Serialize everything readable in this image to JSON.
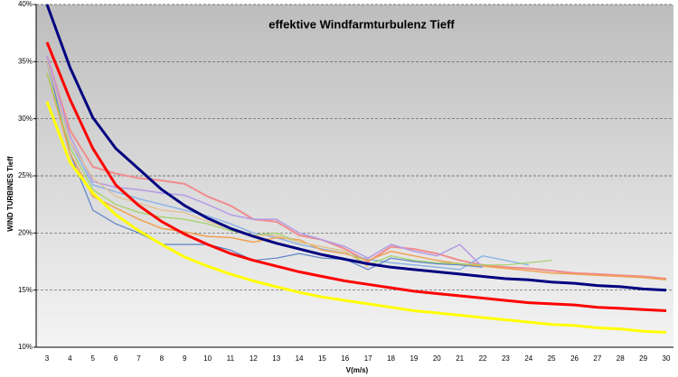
{
  "chart_data": {
    "type": "line",
    "title": "effektive Windfarmturbulenz Tieff",
    "x_label": "V(m/s)",
    "y_label": "WIND TURBINES Tieff",
    "categories": [
      "3",
      "4",
      "5",
      "6",
      "7",
      "8",
      "9",
      "10",
      "11",
      "12",
      "13",
      "14",
      "15",
      "16",
      "17",
      "18",
      "19",
      "20",
      "21",
      "22",
      "23",
      "24",
      "25",
      "26",
      "27",
      "28",
      "29",
      "30"
    ],
    "ylim": [
      10,
      40
    ],
    "yticks": [
      {
        "value": 10,
        "label": "10%"
      },
      {
        "value": 15,
        "label": "15%"
      },
      {
        "value": 20,
        "label": "20%"
      },
      {
        "value": 25,
        "label": "25%"
      },
      {
        "value": 30,
        "label": "30%"
      },
      {
        "value": 35,
        "label": "35%"
      },
      {
        "value": 40,
        "label": "40%"
      }
    ],
    "grid": true,
    "series": [
      {
        "color": "#f08c8c",
        "width": 2,
        "values": [
          35.5,
          29,
          25.8,
          25.2,
          24.8,
          24.6,
          24.3,
          23.2,
          22.4,
          21.2,
          21.0,
          19.8,
          19.4,
          18.6,
          17.5,
          18.8,
          18.6,
          18.2,
          17.6,
          17.2,
          17.0,
          16.9,
          16.7,
          16.5,
          16.4,
          16.3,
          16.2,
          16.0
        ]
      },
      {
        "color": "#8cb4e6",
        "width": 1.5,
        "values": [
          35,
          28,
          24.2,
          23.6,
          23.0,
          22.5,
          22.0,
          21.5,
          20.8,
          20.0,
          19.6,
          19.0,
          18.6,
          18.2,
          17.7,
          17.4,
          17.2,
          17.0,
          16.8,
          18.0,
          17.6,
          17.2,
          null,
          null,
          null,
          null,
          null,
          null
        ]
      },
      {
        "color": "#5a82c8",
        "width": 1.2,
        "values": [
          35,
          27,
          22.0,
          20.8,
          20.0,
          19.0,
          19.0,
          19.0,
          18.5,
          17.6,
          17.8,
          18.2,
          17.8,
          17.7,
          16.8,
          17.8,
          17.5,
          17.3,
          17.2,
          17.0,
          null,
          null,
          null,
          null,
          null,
          null,
          null,
          null
        ]
      },
      {
        "color": "#f0a050",
        "width": 1.5,
        "values": [
          34,
          27,
          23.2,
          22.2,
          21.2,
          20.4,
          20.1,
          19.7,
          19.6,
          19.2,
          19.6,
          19.4,
          18.5,
          18.2,
          17.6,
          18.4,
          18.0,
          17.6,
          17.3,
          17.1,
          16.9,
          16.7,
          16.5,
          16.4,
          16.3,
          16.2,
          16.1,
          15.9
        ]
      },
      {
        "color": "#b49be6",
        "width": 1.5,
        "values": [
          35.5,
          28.5,
          24.5,
          24.0,
          23.8,
          23.5,
          23.3,
          22.5,
          21.6,
          21.2,
          21.2,
          20.0,
          19.4,
          18.8,
          17.8,
          19.0,
          18.4,
          18.0,
          19.0,
          17.0,
          null,
          null,
          null,
          null,
          null,
          null,
          null,
          null
        ]
      },
      {
        "color": "#a0d264",
        "width": 1.2,
        "values": [
          34,
          27.5,
          23.8,
          22.5,
          21.8,
          21.4,
          21.2,
          20.8,
          20.2,
          19.8,
          20.0,
          19.2,
          18.8,
          18.4,
          17.2,
          18.0,
          17.6,
          17.4,
          17.3,
          17.2,
          17.2,
          17.4,
          17.6,
          null,
          null,
          null,
          null,
          null
        ]
      },
      {
        "color": "#e6be8c",
        "width": 1.2,
        "values": [
          35,
          28,
          24.8,
          23.2,
          22.6,
          22.0,
          21.8,
          21.0,
          20.4,
          19.8,
          19.8,
          19.2,
          18.8,
          18.4,
          17.0,
          null,
          null,
          null,
          null,
          null,
          null,
          null,
          null,
          null,
          null,
          null,
          null,
          null
        ]
      },
      {
        "color": "#ffff00",
        "width": 3,
        "values": [
          31.5,
          26.2,
          23.5,
          21.6,
          20.2,
          19.0,
          17.9,
          17.1,
          16.4,
          15.8,
          15.3,
          14.8,
          14.4,
          14.1,
          13.8,
          13.5,
          13.2,
          13.0,
          12.8,
          12.6,
          12.4,
          12.2,
          12.0,
          11.9,
          11.7,
          11.6,
          11.4,
          11.3
        ]
      },
      {
        "color": "#ff0000",
        "width": 3,
        "values": [
          36.7,
          31.7,
          27.4,
          24.2,
          22.4,
          21.0,
          19.9,
          19.0,
          18.2,
          17.6,
          17.1,
          16.6,
          16.2,
          15.8,
          15.5,
          15.2,
          14.9,
          14.7,
          14.5,
          14.3,
          14.1,
          13.9,
          13.8,
          13.7,
          13.5,
          13.4,
          13.3,
          13.2
        ]
      },
      {
        "color": "#000080",
        "width": 3,
        "values": [
          40,
          34.5,
          30.1,
          27.4,
          25.6,
          23.8,
          22.4,
          21.3,
          20.4,
          19.7,
          19.1,
          18.6,
          18.1,
          17.7,
          17.3,
          17.0,
          16.8,
          16.6,
          16.4,
          16.2,
          16.0,
          15.9,
          15.7,
          15.6,
          15.4,
          15.3,
          15.1,
          15.0
        ]
      }
    ]
  }
}
